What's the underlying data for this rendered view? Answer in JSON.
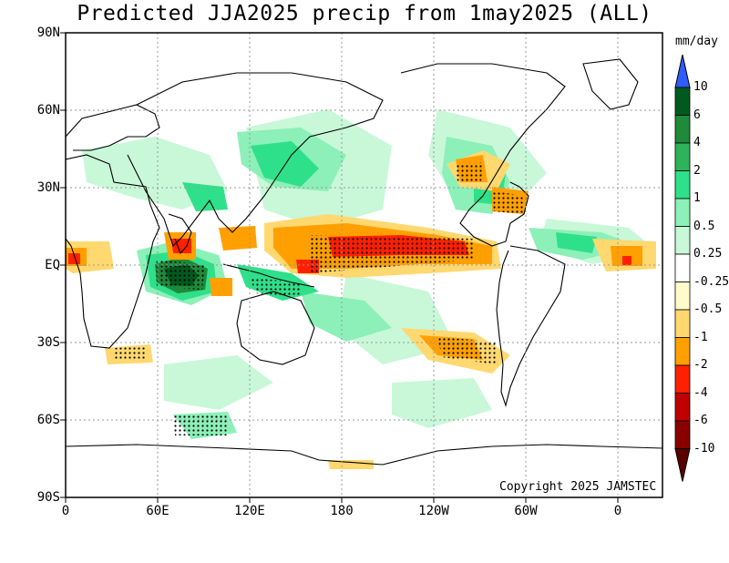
{
  "title": "Predicted JJA2025 precip from 1may2025 (ALL)",
  "copyright": "Copyright 2025 JAMSTEC",
  "y_axis_labels": [
    "90N",
    "60N",
    "30N",
    "EQ",
    "30S",
    "60S",
    "90S"
  ],
  "x_axis_labels": [
    "0",
    "60E",
    "120E",
    "180",
    "120W",
    "60W",
    "0"
  ],
  "colorbar": {
    "units": "mm/day",
    "labels": [
      "10",
      "6",
      "4",
      "2",
      "1",
      "0.5",
      "0.25",
      "-0.25",
      "-0.5",
      "-1",
      "-2",
      "-4",
      "-6",
      "-10"
    ],
    "colors": [
      "#2f5bff",
      "#005a1e",
      "#1f8a3a",
      "#2eb25a",
      "#2fe08a",
      "#8cf0b8",
      "#c8f8d8",
      "#ffffff",
      "#fffccc",
      "#ffd870",
      "#ffa000",
      "#ff2000",
      "#c00000",
      "#8a0000",
      "#5a0000"
    ],
    "upper_arrow_color": "#2f5bff",
    "lower_arrow_color": "#5a0000"
  },
  "map": {
    "projection": "cylindrical equidistant",
    "lon_range": [
      0,
      360
    ],
    "lat_range": [
      -90,
      90
    ],
    "grid": true
  }
}
